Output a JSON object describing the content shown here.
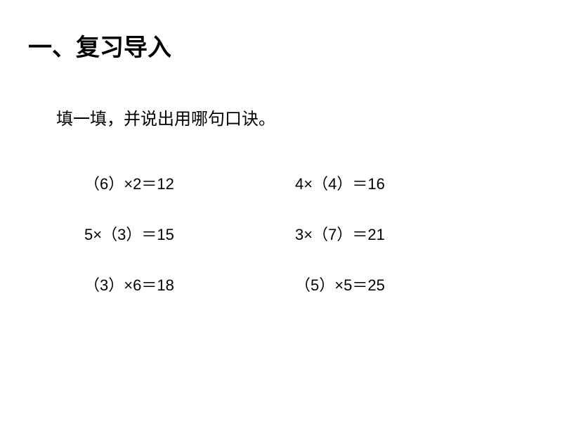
{
  "title": "一、复习导入",
  "instruction": "填一填，并说出用哪句口诀。",
  "equations": {
    "e1": {
      "blank": "6",
      "op_before": true,
      "other": "2",
      "result": "12"
    },
    "e2": {
      "blank": "4",
      "op_before": false,
      "other": "4",
      "result": "16"
    },
    "e3": {
      "blank": "3",
      "op_before": false,
      "other": "5",
      "result": "15"
    },
    "e4": {
      "blank": "7",
      "op_before": false,
      "other": "3",
      "result": "21"
    },
    "e5": {
      "blank": "3",
      "op_before": true,
      "other": "6",
      "result": "18"
    },
    "e6": {
      "blank": "5",
      "op_before": true,
      "other": "5",
      "result": "25"
    }
  },
  "style": {
    "background_color": "#ffffff",
    "text_color": "#000000",
    "title_fontsize": 34,
    "instruction_fontsize": 24,
    "equation_fontsize": 22,
    "font_family_cjk": "SimSun",
    "font_family_latin": "Arial"
  }
}
